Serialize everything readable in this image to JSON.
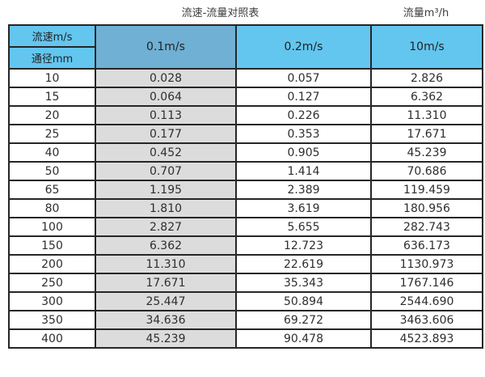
{
  "page": {
    "title": "流速-流量对照表",
    "unit_label": "流量m³/h"
  },
  "colors": {
    "header_blue": "#63c6ef",
    "header_muted_blue": "#6fb0d4",
    "column_gray": "#dcdcdc",
    "border": "#262626"
  },
  "chart_data": {
    "type": "table",
    "title": "流速-流量对照表",
    "unit_label": "流量m³/h",
    "corner_headers": {
      "top": "流速m/s",
      "bottom": "通径mm"
    },
    "velocity_columns": [
      "0.1m/s",
      "0.2m/s",
      "10m/s"
    ],
    "rows": [
      {
        "diameter_mm": "10",
        "values": [
          "0.028",
          "0.057",
          "2.826"
        ]
      },
      {
        "diameter_mm": "15",
        "values": [
          "0.064",
          "0.127",
          "6.362"
        ]
      },
      {
        "diameter_mm": "20",
        "values": [
          "0.113",
          "0.226",
          "11.310"
        ]
      },
      {
        "diameter_mm": "25",
        "values": [
          "0.177",
          "0.353",
          "17.671"
        ]
      },
      {
        "diameter_mm": "40",
        "values": [
          "0.452",
          "0.905",
          "45.239"
        ]
      },
      {
        "diameter_mm": "50",
        "values": [
          "0.707",
          "1.414",
          "70.686"
        ]
      },
      {
        "diameter_mm": "65",
        "values": [
          "1.195",
          "2.389",
          "119.459"
        ]
      },
      {
        "diameter_mm": "80",
        "values": [
          "1.810",
          "3.619",
          "180.956"
        ]
      },
      {
        "diameter_mm": "100",
        "values": [
          "2.827",
          "5.655",
          "282.743"
        ]
      },
      {
        "diameter_mm": "150",
        "values": [
          "6.362",
          "12.723",
          "636.173"
        ]
      },
      {
        "diameter_mm": "200",
        "values": [
          "11.310",
          "22.619",
          "1130.973"
        ]
      },
      {
        "diameter_mm": "250",
        "values": [
          "17.671",
          "35.343",
          "1767.146"
        ]
      },
      {
        "diameter_mm": "300",
        "values": [
          "25.447",
          "50.894",
          "2544.690"
        ]
      },
      {
        "diameter_mm": "350",
        "values": [
          "34.636",
          "69.272",
          "3463.606"
        ]
      },
      {
        "diameter_mm": "400",
        "values": [
          "45.239",
          "90.478",
          "4523.893"
        ]
      }
    ]
  }
}
